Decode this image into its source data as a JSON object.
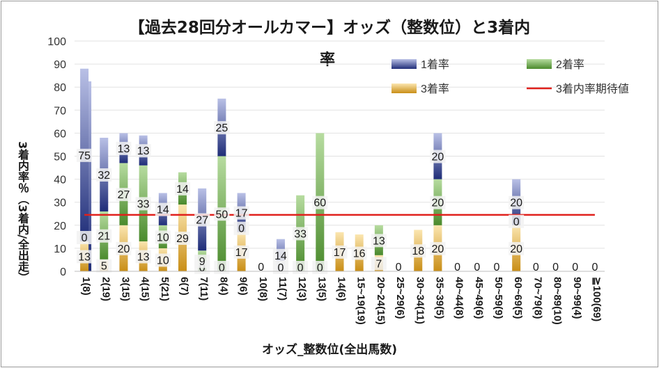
{
  "chart_data": {
    "type": "bar",
    "stacked": true,
    "title": "【過去28回分オールカマー】オッズ（整数位）と3着内率",
    "xlabel": "オッズ_整数位(全出馬数)",
    "ylabel": "3着内率％（3着内/全出走）",
    "ylim": [
      0,
      100
    ],
    "yticks": [
      0,
      10,
      20,
      30,
      40,
      50,
      60,
      70,
      80,
      90,
      100
    ],
    "categories": [
      "1(8)",
      "2(19)",
      "3(15)",
      "4(15)",
      "5(21)",
      "6(7)",
      "7(11)",
      "8(4)",
      "9(6)",
      "10(8)",
      "11(7)",
      "12(3)",
      "13(5)",
      "14(6)",
      "15~19(19)",
      "20~24(15)",
      "25~29(6)",
      "30~34(11)",
      "35~39(5)",
      "40~44(8)",
      "45~49(6)",
      "50~59(9)",
      "60~69(5)",
      "70~79(8)",
      "80~89(10)",
      "90~99(4)",
      "≧100(69)"
    ],
    "series": [
      {
        "name": "3着率",
        "color": "#d9a12a",
        "values": [
          13,
          5,
          20,
          13,
          10,
          29,
          0,
          0,
          17,
          0,
          0,
          0,
          0,
          17,
          16,
          7,
          0,
          18,
          20,
          0,
          0,
          0,
          20,
          0,
          0,
          0,
          0
        ]
      },
      {
        "name": "2着率",
        "color": "#5e9a3c",
        "values": [
          0,
          21,
          27,
          33,
          10,
          14,
          9,
          50,
          0,
          0,
          0,
          33,
          60,
          0,
          0,
          13,
          0,
          0,
          20,
          0,
          0,
          0,
          0,
          0,
          0,
          0,
          0
        ]
      },
      {
        "name": "1着率",
        "color": "#2f3f8f",
        "values": [
          75,
          32,
          13,
          13,
          14,
          0,
          27,
          25,
          17,
          0,
          14,
          0,
          0,
          0,
          0,
          0,
          0,
          0,
          20,
          0,
          0,
          0,
          20,
          0,
          0,
          0,
          0
        ]
      }
    ],
    "extra_bar": {
      "category_index": 0,
      "value": 82.5
    },
    "reference_line": {
      "name": "3着内率期待値",
      "value": 24.5,
      "color": "#e0201c"
    },
    "legend": {
      "position": "top-right"
    }
  }
}
